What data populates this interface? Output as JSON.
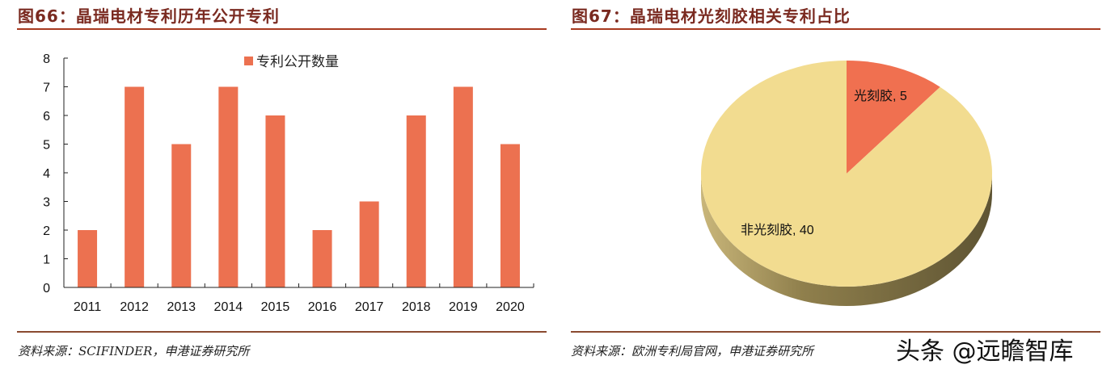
{
  "left_figure": {
    "title": "图66：晶瑞电材专利历年公开专利",
    "source": "资料来源：SCIFINDER，申港证券研究所"
  },
  "right_figure": {
    "title": "图67：晶瑞电材光刻胶相关专利占比",
    "source": "资料来源：欧洲专利局官网，申港证券研究所"
  },
  "watermark": "头条 @远瞻智库",
  "colors": {
    "title": "#7a2a20",
    "rule": "#a8391f",
    "bar": "#ec7150",
    "pie_photoresist": "#f07050",
    "pie_other": "#f2dc90",
    "pie_side": "#8f7f4c"
  },
  "chart_data": [
    {
      "type": "bar",
      "title": "晶瑞电材专利历年公开专利",
      "categories": [
        "2011",
        "2012",
        "2013",
        "2014",
        "2015",
        "2016",
        "2017",
        "2018",
        "2019",
        "2020"
      ],
      "series": [
        {
          "name": "专利公开数量",
          "values": [
            2,
            7,
            5,
            7,
            6,
            2,
            3,
            6,
            7,
            5
          ]
        }
      ],
      "xlabel": "",
      "ylabel": "",
      "ylim": [
        0,
        8
      ],
      "yticks": [
        "0",
        "1",
        "2",
        "3",
        "4",
        "5",
        "6",
        "7",
        "8"
      ],
      "grid": false,
      "legend_position": "top-right"
    },
    {
      "type": "pie",
      "title": "晶瑞电材光刻胶相关专利占比",
      "categories": [
        "光刻胶",
        "非光刻胶"
      ],
      "values": [
        5,
        40
      ],
      "labels": [
        "光刻胶, 5",
        "非光刻胶, 40"
      ],
      "style": "3d"
    }
  ]
}
